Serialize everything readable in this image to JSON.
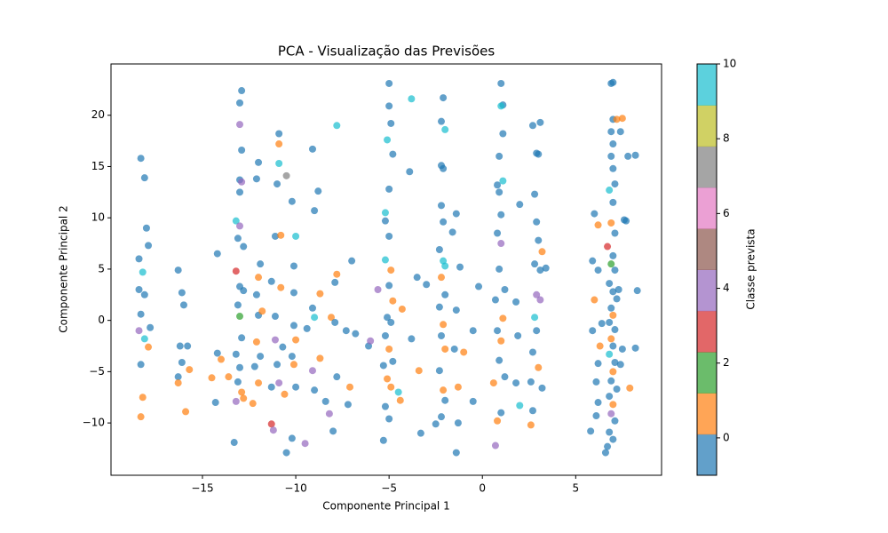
{
  "chart_data": {
    "type": "scatter",
    "title": "PCA - Visualização das Previsões",
    "x_label": "Componente Principal 1",
    "y_label": "Componente Principal 2",
    "colorbar_label": "Classe prevista",
    "xlim": [
      -19.9,
      9.6
    ],
    "ylim": [
      -15.1,
      25
    ],
    "xticks": [
      {
        "value": -15,
        "label": "−15"
      },
      {
        "value": -10,
        "label": "−10"
      },
      {
        "value": -5,
        "label": "−5"
      },
      0,
      5
    ],
    "yticks": [
      {
        "value": -10,
        "label": "−10"
      },
      {
        "value": -5,
        "label": "−5"
      },
      0,
      5,
      10,
      15,
      20
    ],
    "clim": [
      -1,
      10
    ],
    "cticks": [
      0,
      2,
      4,
      6,
      8,
      10
    ],
    "colors": [
      "#1f77b4",
      "#ff7f0e",
      "#2ca02c",
      "#d62728",
      "#9467bd",
      "#8c564b",
      "#e377c2",
      "#7f7f7f",
      "#bcbd22",
      "#17becf"
    ],
    "alpha": 0.7,
    "x": [
      -18.3,
      -18.1,
      -18.0,
      -17.9,
      -18.4,
      -18.2,
      -18.4,
      -18.1,
      -18.3,
      -17.8,
      -18.4,
      -18.1,
      -17.9,
      -18.3,
      -18.2,
      -18.3,
      -16.3,
      -16.1,
      -16.0,
      -16.2,
      -15.8,
      -16.1,
      -16.3,
      -16.3,
      -15.9,
      -15.7,
      -14.2,
      -14.2,
      -14.0,
      -14.5,
      -14.3,
      -13.6,
      -13.3,
      -12.9,
      -13.0,
      -13.0,
      -12.9,
      -13.0,
      -12.9,
      -13.0,
      -13.2,
      -13.0,
      -13.1,
      -12.8,
      -13.2,
      -13.0,
      -12.8,
      -13.1,
      -13.0,
      -12.9,
      -13.2,
      -13.0,
      -13.1,
      -12.9,
      -13.2,
      -12.8,
      -12.0,
      -12.1,
      -11.9,
      -12.0,
      -12.1,
      -12.0,
      -11.8,
      -12.1,
      -11.9,
      -12.2,
      -12.0,
      -12.3,
      -10.9,
      -10.9,
      -11.0,
      -10.9,
      -10.5,
      -11.1,
      -10.8,
      -11.3,
      -10.8,
      -11.1,
      -11.1,
      -10.7,
      -11.0,
      -11.3,
      -10.9,
      -10.6,
      -11.3,
      -11.2,
      -10.5,
      -10.2,
      -10.0,
      -10.1,
      -10.1,
      -10.1,
      -10.0,
      -10.2,
      -10.1,
      -10.0,
      -10.2,
      -9.5,
      -9.1,
      -8.8,
      -9.0,
      -9.1,
      -9.0,
      -8.7,
      -9.4,
      -9.1,
      -9.0,
      -8.7,
      -8.4,
      -7.8,
      -7.8,
      -7.9,
      -8.1,
      -7.9,
      -7.3,
      -7.8,
      -8.2,
      -8.0,
      -7.1,
      -7.2,
      -7.0,
      -6.8,
      -6.1,
      -6.0,
      -5.6,
      -5.0,
      -5.0,
      -4.9,
      -5.1,
      -4.8,
      -5.0,
      -5.2,
      -5.2,
      -5.0,
      -5.2,
      -4.9,
      -5.0,
      -4.8,
      -5.1,
      -4.9,
      -5.2,
      -5.0,
      -4.8,
      -5.3,
      -5.1,
      -4.9,
      -5.2,
      -5.0,
      -5.3,
      -4.5,
      -4.4,
      -4.3,
      -3.8,
      -3.9,
      -3.5,
      -3.8,
      -3.4,
      -3.3,
      -3.0,
      -2.1,
      -2.2,
      -2.0,
      -2.2,
      -2.1,
      -2.2,
      -2.1,
      -2.3,
      -2.1,
      -2.0,
      -2.2,
      -2.0,
      -2.3,
      -2.1,
      -2.2,
      -2.0,
      -2.3,
      -2.1,
      -2.0,
      -2.2,
      -2.5,
      -1.6,
      -1.5,
      -1.3,
      -1.2,
      -1.4,
      -1.4,
      -1.3,
      -1.4,
      -1.0,
      -0.5,
      -0.2,
      -0.5,
      1.0,
      1.1,
      1.0,
      1.1,
      0.9,
      0.8,
      1.1,
      0.9,
      1.0,
      0.8,
      1.0,
      0.9,
      1.2,
      0.7,
      1.1,
      0.8,
      1.0,
      0.9,
      1.2,
      0.6,
      0.8,
      0.7,
      1.0,
      2.0,
      1.8,
      1.9,
      1.8,
      2.0,
      2.7,
      2.9,
      3.1,
      3.0,
      2.8,
      2.9,
      3.0,
      2.8,
      3.1,
      3.2,
      3.4,
      2.9,
      3.1,
      2.8,
      2.9,
      2.7,
      3.0,
      2.6,
      2.7,
      3.2,
      2.6,
      6.9,
      7.0,
      7.0,
      7.2,
      6.9,
      7.0,
      6.9,
      7.0,
      7.1,
      6.8,
      7.0,
      6.9,
      7.1,
      6.7,
      7.0,
      6.9,
      7.1,
      6.8,
      7.0,
      7.2,
      6.9,
      7.0,
      6.8,
      7.1,
      6.9,
      7.0,
      6.8,
      7.1,
      7.0,
      6.9,
      7.2,
      6.8,
      7.0,
      6.9,
      7.1,
      6.8,
      7.0,
      6.6,
      6.7,
      7.4,
      7.5,
      7.3,
      7.6,
      7.4,
      7.5,
      7.8,
      8.2,
      8.3,
      8.2,
      7.9,
      7.7,
      6.4,
      6.2,
      6.2,
      6.1,
      5.8,
      5.9,
      6.0,
      6.1,
      5.9,
      6.2,
      6.3,
      6.0,
      6.2
    ],
    "y": [
      15.8,
      13.9,
      9.0,
      7.3,
      6.0,
      4.7,
      3.0,
      2.5,
      0.6,
      -0.7,
      -1.0,
      -1.8,
      -2.6,
      -4.3,
      -7.5,
      -9.4,
      4.9,
      2.7,
      1.5,
      -2.5,
      -2.5,
      -4.1,
      -5.5,
      -6.1,
      -8.9,
      -4.8,
      6.5,
      -3.2,
      -3.8,
      -5.6,
      -8.0,
      -5.5,
      -11.9,
      22.4,
      21.2,
      19.1,
      16.6,
      13.7,
      13.5,
      12.5,
      9.7,
      9.2,
      8.0,
      7.2,
      4.8,
      3.3,
      2.9,
      1.5,
      0.4,
      -1.7,
      -3.3,
      -4.6,
      -6.0,
      -7.0,
      -7.9,
      -7.6,
      15.4,
      13.8,
      5.5,
      4.2,
      2.5,
      0.5,
      0.9,
      -2.1,
      -3.5,
      -4.5,
      -6.1,
      -8.1,
      18.2,
      17.2,
      13.3,
      15.3,
      14.1,
      8.2,
      8.3,
      3.8,
      3.2,
      0.4,
      -1.9,
      -2.6,
      -4.3,
      -6.5,
      -6.1,
      -7.2,
      -10.1,
      -10.7,
      -12.9,
      11.6,
      8.2,
      5.3,
      2.7,
      -0.5,
      -1.9,
      -3.5,
      -4.3,
      -6.5,
      -11.5,
      -12.0,
      16.7,
      12.6,
      10.7,
      1.2,
      0.3,
      2.6,
      -0.8,
      -4.9,
      -6.8,
      -3.7,
      -7.9,
      19.0,
      4.5,
      3.7,
      0.3,
      -0.2,
      -1.0,
      -5.5,
      -9.1,
      -10.8,
      -6.5,
      -8.2,
      5.8,
      -1.3,
      -2.5,
      -2.0,
      3.0,
      23.1,
      20.9,
      19.2,
      17.6,
      16.2,
      12.8,
      10.5,
      9.7,
      8.2,
      5.9,
      4.9,
      3.4,
      1.9,
      0.3,
      -0.2,
      -1.5,
      -2.8,
      -4.0,
      -4.4,
      -5.7,
      -6.5,
      -8.4,
      -9.6,
      -11.7,
      -7.0,
      -7.8,
      1.1,
      21.6,
      14.5,
      4.2,
      -1.8,
      -4.9,
      -11.0,
      3.5,
      21.7,
      19.4,
      18.6,
      15.1,
      14.8,
      11.2,
      9.6,
      6.9,
      5.8,
      5.3,
      4.2,
      2.5,
      1.3,
      -0.4,
      -1.5,
      -2.8,
      -4.9,
      -6.8,
      -7.8,
      -9.4,
      -10.1,
      8.6,
      -2.8,
      -6.5,
      5.2,
      10.4,
      1.0,
      -10.0,
      -12.9,
      -3.1,
      -1.0,
      3.3,
      -7.9,
      23.1,
      21.0,
      20.9,
      18.2,
      16.0,
      13.2,
      13.6,
      12.5,
      10.3,
      8.5,
      7.5,
      5.0,
      3.0,
      2.0,
      0.2,
      -1.0,
      -2.0,
      -3.9,
      -5.5,
      -6.1,
      -9.8,
      -12.2,
      -9.0,
      11.3,
      1.8,
      -1.5,
      -6.1,
      -8.3,
      19.0,
      16.3,
      19.3,
      16.2,
      12.3,
      9.6,
      7.8,
      5.5,
      4.9,
      6.7,
      5.1,
      2.5,
      2.0,
      0.3,
      -1.0,
      -3.1,
      -4.6,
      -6.0,
      -8.8,
      -6.6,
      -10.2,
      23.1,
      23.2,
      19.6,
      19.6,
      18.4,
      17.2,
      16.0,
      14.8,
      13.3,
      12.7,
      11.5,
      9.5,
      8.5,
      7.2,
      6.3,
      5.5,
      4.9,
      3.6,
      2.8,
      2.1,
      1.2,
      0.5,
      -0.2,
      -0.9,
      -1.8,
      -2.5,
      -3.3,
      -4.1,
      -5.0,
      -5.9,
      -6.7,
      -7.4,
      -8.2,
      -9.1,
      -9.8,
      -10.9,
      -11.6,
      -12.9,
      -12.3,
      -4.3,
      -2.8,
      3.0,
      9.8,
      18.4,
      19.7,
      16.0,
      16.1,
      2.9,
      -2.7,
      -6.6,
      9.7,
      -0.3,
      4.9,
      -4.2,
      -9.3,
      -10.8,
      5.8,
      10.4,
      -6.0,
      -1.0,
      -8.0,
      -2.5,
      2.0,
      9.3
    ],
    "classes": [
      0,
      0,
      0,
      0,
      0,
      9,
      0,
      0,
      0,
      0,
      4,
      9,
      1,
      0,
      1,
      1,
      0,
      0,
      0,
      0,
      0,
      0,
      0,
      1,
      1,
      1,
      0,
      0,
      1,
      1,
      0,
      1,
      0,
      0,
      0,
      4,
      0,
      0,
      4,
      0,
      9,
      4,
      0,
      0,
      3,
      0,
      0,
      0,
      2,
      0,
      0,
      0,
      0,
      1,
      4,
      1,
      0,
      0,
      0,
      1,
      0,
      0,
      1,
      1,
      0,
      0,
      1,
      1,
      0,
      1,
      0,
      9,
      7,
      0,
      1,
      0,
      1,
      0,
      4,
      0,
      0,
      0,
      4,
      1,
      3,
      4,
      0,
      0,
      9,
      0,
      0,
      0,
      1,
      0,
      1,
      0,
      0,
      4,
      0,
      0,
      0,
      0,
      9,
      1,
      0,
      4,
      0,
      1,
      0,
      9,
      1,
      0,
      1,
      0,
      0,
      0,
      4,
      0,
      1,
      0,
      0,
      0,
      0,
      4,
      4,
      0,
      0,
      0,
      9,
      0,
      0,
      9,
      0,
      0,
      9,
      1,
      0,
      1,
      0,
      0,
      0,
      1,
      0,
      0,
      1,
      1,
      0,
      0,
      0,
      9,
      1,
      1,
      9,
      0,
      0,
      0,
      1,
      0,
      0,
      0,
      0,
      9,
      0,
      0,
      0,
      0,
      0,
      9,
      9,
      1,
      0,
      0,
      1,
      0,
      1,
      0,
      1,
      0,
      0,
      0,
      0,
      0,
      1,
      0,
      0,
      0,
      0,
      0,
      1,
      0,
      0,
      0,
      0,
      0,
      9,
      0,
      0,
      0,
      9,
      0,
      0,
      0,
      4,
      0,
      0,
      0,
      1,
      0,
      1,
      0,
      0,
      1,
      1,
      4,
      0,
      0,
      0,
      0,
      0,
      9,
      0,
      0,
      0,
      0,
      0,
      0,
      0,
      0,
      0,
      1,
      0,
      4,
      4,
      9,
      0,
      0,
      1,
      0,
      0,
      0,
      1,
      0,
      0,
      0,
      1,
      0,
      0,
      0,
      0,
      0,
      9,
      0,
      1,
      0,
      3,
      0,
      2,
      0,
      0,
      0,
      0,
      0,
      1,
      0,
      0,
      1,
      0,
      9,
      0,
      1,
      0,
      0,
      0,
      1,
      4,
      0,
      0,
      0,
      0,
      0,
      0,
      0,
      0,
      0,
      0,
      1,
      0,
      0,
      0,
      0,
      1,
      0,
      0,
      0,
      0,
      0,
      0,
      0,
      0,
      0,
      0,
      0,
      1,
      1,
      1
    ]
  }
}
